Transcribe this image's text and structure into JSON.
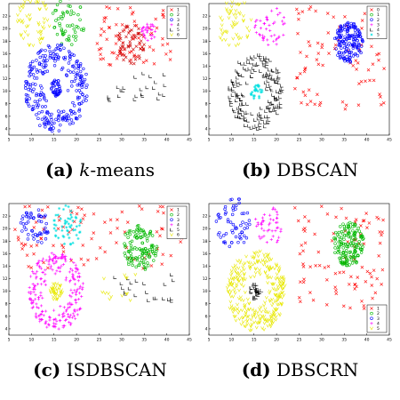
{
  "chart_data": [
    {
      "type": "scatter",
      "caption": {
        "tag": "(a)",
        "pre": "",
        "italic": "k",
        "post": "-means"
      },
      "xlim": [
        5,
        45
      ],
      "ylim": [
        3,
        24
      ],
      "xticks": [
        "5",
        "10",
        "15",
        "20",
        "25",
        "30",
        "35",
        "40",
        "45"
      ],
      "yticks": [
        "4",
        "6",
        "8",
        "10",
        "12",
        "14",
        "16",
        "18",
        "20",
        "22"
      ],
      "legend": {
        "placement": "top-right",
        "labels": [
          "1",
          "2",
          "3",
          "4",
          "5",
          "6"
        ]
      },
      "series": [
        {
          "label": "1",
          "color": "#ff0000",
          "marker": "x",
          "clusters": [
            {
              "kind": "field",
              "x": [
                24,
                41
              ],
              "y": [
                14,
                23.6
              ],
              "n": 70
            }
          ]
        },
        {
          "label": "2",
          "color": "#00b800",
          "marker": "o",
          "clusters": [
            {
              "kind": "ring",
              "cx": 18,
              "cy": 21,
              "r": [
                0,
                3.8
              ],
              "n": 55
            }
          ]
        },
        {
          "label": "3",
          "color": "#0000ff",
          "marker": "o",
          "clusters": [
            {
              "kind": "ring",
              "cx": 15.5,
              "cy": 10.5,
              "r": [
                2.5,
                7
              ],
              "n": 260
            },
            {
              "kind": "ring",
              "cx": 15.5,
              "cy": 10.5,
              "r": [
                0,
                1.3
              ],
              "n": 40
            }
          ]
        },
        {
          "label": "4",
          "color": "#ff00ff",
          "marker": "+",
          "clusters": [
            {
              "kind": "ring",
              "cx": 36,
              "cy": 19.5,
              "r": [
                0,
                1.6
              ],
              "n": 30
            }
          ]
        },
        {
          "label": "5",
          "color": "#000000",
          "marker": "L",
          "clusters": [
            {
              "kind": "field",
              "x": [
                27,
                40
              ],
              "y": [
                8.5,
                13
              ],
              "n": 24
            }
          ]
        },
        {
          "label": "6",
          "color": "#e8e800",
          "marker": "v",
          "clusters": [
            {
              "kind": "ring",
              "cx": 10.5,
              "cy": 21,
              "r": [
                0,
                4
              ],
              "n": 55
            }
          ]
        },
        {
          "label": "",
          "color": "#cc0000",
          "marker": "x",
          "clusters": [
            {
              "kind": "ring",
              "cx": 32,
              "cy": 17.5,
              "r": [
                0,
                3.2
              ],
              "n": 60
            }
          ]
        }
      ]
    },
    {
      "type": "scatter",
      "caption": {
        "tag": "(b)",
        "pre": "DBSCAN",
        "italic": "",
        "post": ""
      },
      "xlim": [
        5,
        45
      ],
      "ylim": [
        3,
        24
      ],
      "xticks": [
        "5",
        "10",
        "15",
        "20",
        "25",
        "30",
        "35",
        "40",
        "45"
      ],
      "yticks": [
        "4",
        "6",
        "8",
        "10",
        "12",
        "14",
        "16",
        "18",
        "20",
        "22"
      ],
      "legend": {
        "placement": "top-right",
        "labels": [
          "0",
          "1",
          "2",
          "3",
          "4",
          "5"
        ]
      },
      "series": [
        {
          "label": "0",
          "color": "#ff0000",
          "marker": "x",
          "clusters": [
            {
              "kind": "field",
              "x": [
                24,
                44
              ],
              "y": [
                7,
                23.6
              ],
              "n": 85
            }
          ]
        },
        {
          "label": "1",
          "color": "#00b800",
          "marker": "o",
          "clusters": [
            {
              "kind": "field",
              "x": [
                15,
                22
              ],
              "y": [
                7,
                23
              ],
              "n": 0
            }
          ]
        },
        {
          "label": "2",
          "color": "#0000ff",
          "marker": "o",
          "clusters": [
            {
              "kind": "ring",
              "cx": 36,
              "cy": 17.8,
              "r": [
                0,
                3.2
              ],
              "n": 150
            }
          ]
        },
        {
          "label": "3",
          "color": "#ff00ff",
          "marker": "+",
          "clusters": [
            {
              "kind": "ring",
              "cx": 18.5,
              "cy": 20.5,
              "r": [
                0,
                3.5
              ],
              "n": 45
            }
          ]
        },
        {
          "label": "4",
          "color": "#000000",
          "marker": "L",
          "clusters": [
            {
              "kind": "ring",
              "cx": 15.5,
              "cy": 10,
              "r": [
                2.3,
                6
              ],
              "n": 180
            }
          ]
        },
        {
          "label": "5",
          "color": "#00e0e0",
          "marker": "*",
          "clusters": [
            {
              "kind": "ring",
              "cx": 15.5,
              "cy": 10,
              "r": [
                0,
                1.3
              ],
              "n": 28
            }
          ]
        },
        {
          "label": "",
          "color": "#e8e800",
          "marker": "v",
          "clusters": [
            {
              "kind": "ring",
              "cx": 10.5,
              "cy": 21,
              "r": [
                0,
                4
              ],
              "n": 55
            }
          ]
        }
      ]
    },
    {
      "type": "scatter",
      "caption": {
        "tag": "(c)",
        "pre": "ISDBSCAN",
        "italic": "",
        "post": ""
      },
      "xlim": [
        5,
        45
      ],
      "ylim": [
        3,
        24
      ],
      "xticks": [
        "5",
        "10",
        "15",
        "20",
        "25",
        "30",
        "35",
        "40",
        "45"
      ],
      "yticks": [
        "4",
        "6",
        "8",
        "10",
        "12",
        "14",
        "16",
        "18",
        "20",
        "22"
      ],
      "legend": {
        "placement": "top-right",
        "labels": [
          "1",
          "2",
          "3",
          "4",
          "5",
          "6"
        ]
      },
      "series": [
        {
          "label": "1",
          "color": "#ff0000",
          "marker": "x",
          "clusters": [
            {
              "kind": "field",
              "x": [
                6,
                44
              ],
              "y": [
                13.5,
                23.6
              ],
              "n": 95
            }
          ]
        },
        {
          "label": "2",
          "color": "#00b800",
          "marker": "o",
          "clusters": [
            {
              "kind": "ring",
              "cx": 34,
              "cy": 17,
              "r": [
                0,
                3.8
              ],
              "n": 120
            }
          ]
        },
        {
          "label": "3",
          "color": "#0000ff",
          "marker": "o",
          "clusters": [
            {
              "kind": "ring",
              "cx": 11,
              "cy": 21,
              "r": [
                0,
                3.5
              ],
              "n": 50
            }
          ]
        },
        {
          "label": "4",
          "color": "#ff00ff",
          "marker": "+",
          "clusters": [
            {
              "kind": "ring",
              "cx": 15.5,
              "cy": 10,
              "r": [
                2.5,
                6.2
              ],
              "n": 230
            }
          ]
        },
        {
          "label": "5",
          "color": "#000000",
          "marker": "L",
          "clusters": [
            {
              "kind": "field",
              "x": [
                28,
                42
              ],
              "y": [
                8,
                13
              ],
              "n": 22
            }
          ]
        },
        {
          "label": "6",
          "color": "#e8e800",
          "marker": "v",
          "clusters": [
            {
              "kind": "ring",
              "cx": 15.5,
              "cy": 10,
              "r": [
                0,
                1.4
              ],
              "n": 40
            },
            {
              "kind": "field",
              "x": [
                25,
                34
              ],
              "y": [
                8,
                13
              ],
              "n": 14
            }
          ]
        },
        {
          "label": "",
          "color": "#00e0e0",
          "marker": "*",
          "clusters": [
            {
              "kind": "ring",
              "cx": 18,
              "cy": 20.5,
              "r": [
                0,
                3.3
              ],
              "n": 55
            }
          ]
        }
      ]
    },
    {
      "type": "scatter",
      "caption": {
        "tag": "(d)",
        "pre": "DBSCRN",
        "italic": "",
        "post": ""
      },
      "xlim": [
        5,
        45
      ],
      "ylim": [
        3,
        24
      ],
      "xticks": [
        "5",
        "10",
        "15",
        "20",
        "25",
        "30",
        "35",
        "40",
        "45"
      ],
      "yticks": [
        "4",
        "6",
        "8",
        "10",
        "12",
        "14",
        "16",
        "18",
        "20",
        "22"
      ],
      "legend": {
        "placement": "bottom-right",
        "labels": [
          "1",
          "2",
          "3",
          "4",
          "5"
        ]
      },
      "series": [
        {
          "label": "1",
          "color": "#ff0000",
          "marker": "x",
          "clusters": [
            {
              "kind": "field",
              "x": [
                24,
                44
              ],
              "y": [
                7,
                23.6
              ],
              "n": 95
            }
          ]
        },
        {
          "label": "2",
          "color": "#00b800",
          "marker": "o",
          "clusters": [
            {
              "kind": "ring",
              "cx": 36,
              "cy": 17.5,
              "r": [
                0,
                3.5
              ],
              "n": 150
            }
          ]
        },
        {
          "label": "3",
          "color": "#0000ff",
          "marker": "o",
          "clusters": [
            {
              "kind": "ring",
              "cx": 10.5,
              "cy": 21,
              "r": [
                0,
                4
              ],
              "n": 60
            }
          ]
        },
        {
          "label": "4",
          "color": "#ff00ff",
          "marker": "+",
          "clusters": [
            {
              "kind": "ring",
              "cx": 18.5,
              "cy": 20.5,
              "r": [
                0,
                3.3
              ],
              "n": 45
            }
          ]
        },
        {
          "label": "5",
          "color": "#e8e800",
          "marker": "v",
          "clusters": [
            {
              "kind": "ring",
              "cx": 15.5,
              "cy": 10,
              "r": [
                2.2,
                6.5
              ],
              "n": 300
            }
          ]
        },
        {
          "label": "",
          "color": "#000000",
          "marker": "L",
          "clusters": [
            {
              "kind": "ring",
              "cx": 15.5,
              "cy": 10,
              "r": [
                0,
                1.3
              ],
              "n": 28
            }
          ]
        }
      ]
    }
  ]
}
